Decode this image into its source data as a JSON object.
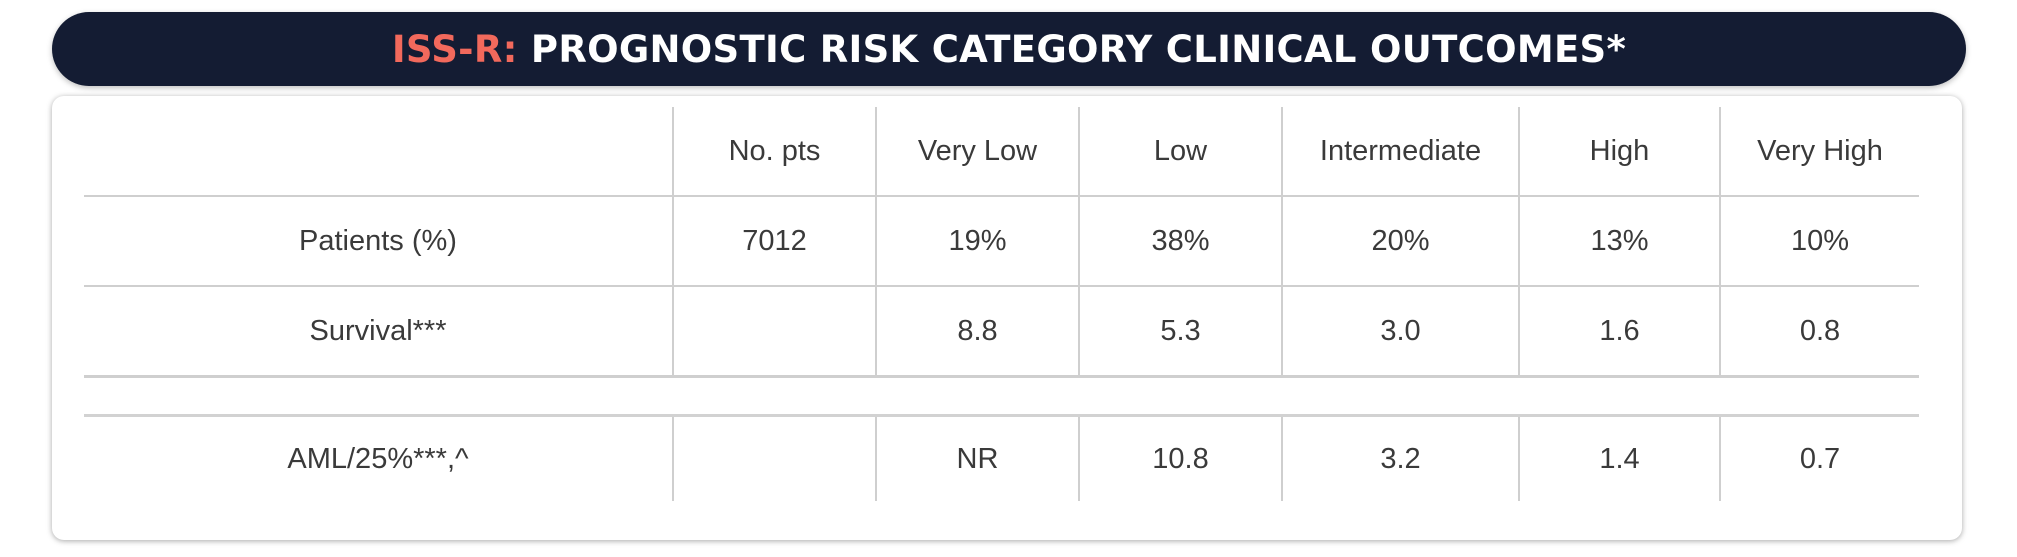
{
  "banner": {
    "prefix": "ISS-R:",
    "title": "PROGNOSTIC RISK CATEGORY CLINICAL OUTCOMES*",
    "prefix_color": "#f2695c",
    "background_color": "#141c33"
  },
  "table": {
    "headers": [
      "",
      "No. pts",
      "Very Low",
      "Low",
      "Intermediate",
      "High",
      "Very High"
    ],
    "rows": [
      {
        "label": "Patients (%)",
        "no_pts": "7012",
        "values": [
          "19%",
          "38%",
          "20%",
          "13%",
          "10%"
        ]
      },
      {
        "label": "Survival***",
        "no_pts": "",
        "values": [
          "8.8",
          "5.3",
          "3.0",
          "1.6",
          "0.8"
        ]
      },
      {
        "label": "AML/25%***,^",
        "no_pts": "",
        "values": [
          "NR",
          "10.8",
          "3.2",
          "1.4",
          "0.7"
        ]
      }
    ]
  }
}
